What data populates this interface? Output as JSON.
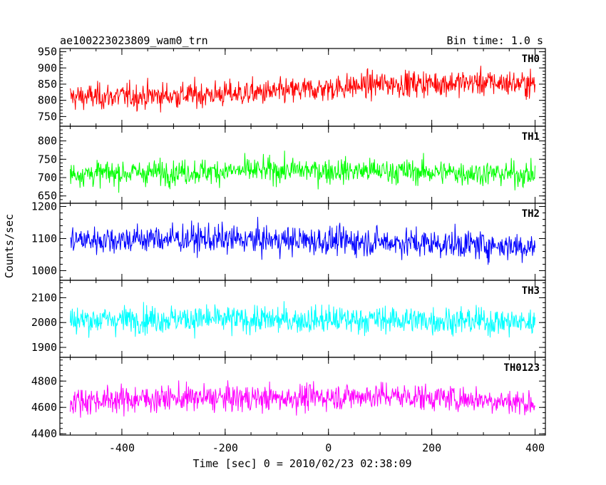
{
  "header": {
    "title": "ae100223023809_wam0_trn",
    "bin_time": "Bin time: 1.0 s"
  },
  "chart_data": {
    "type": "line",
    "xlabel": "Time [sec] 0 = 2010/02/23 02:38:09",
    "ylabel": "Counts/sec",
    "xlim": [
      -520,
      420
    ],
    "xticks": [
      -400,
      -200,
      0,
      200,
      400
    ],
    "x_range": [
      -500,
      400
    ],
    "bin_time_s": 1.0,
    "panels": [
      {
        "name": "TH0",
        "color": "#ff0000",
        "ylim": [
          720,
          960
        ],
        "yticks": [
          750,
          800,
          850,
          900,
          950
        ],
        "trend": [
          [
            -500,
            810
          ],
          [
            -300,
            815
          ],
          [
            -100,
            825
          ],
          [
            100,
            850
          ],
          [
            300,
            855
          ],
          [
            400,
            850
          ]
        ],
        "noise_amplitude": 38
      },
      {
        "name": "TH1",
        "color": "#00ff00",
        "ylim": [
          630,
          840
        ],
        "yticks": [
          650,
          700,
          750,
          800
        ],
        "trend": [
          [
            -500,
            710
          ],
          [
            -300,
            715
          ],
          [
            -100,
            720
          ],
          [
            100,
            718
          ],
          [
            300,
            712
          ],
          [
            400,
            708
          ]
        ],
        "noise_amplitude": 32
      },
      {
        "name": "TH2",
        "color": "#0000ff",
        "ylim": [
          970,
          1210
        ],
        "yticks": [
          1000,
          1100,
          1200
        ],
        "trend": [
          [
            -500,
            1095
          ],
          [
            -300,
            1100
          ],
          [
            -100,
            1095
          ],
          [
            100,
            1090
          ],
          [
            300,
            1080
          ],
          [
            400,
            1075
          ]
        ],
        "noise_amplitude": 42
      },
      {
        "name": "TH3",
        "color": "#00ffff",
        "ylim": [
          1860,
          2170
        ],
        "yticks": [
          1900,
          2000,
          2100
        ],
        "trend": [
          [
            -500,
            2010
          ],
          [
            -300,
            2015
          ],
          [
            -100,
            2010
          ],
          [
            100,
            2012
          ],
          [
            300,
            2005
          ],
          [
            400,
            2000
          ]
        ],
        "noise_amplitude": 52
      },
      {
        "name": "TH0123",
        "color": "#ff00ff",
        "ylim": [
          4390,
          4980
        ],
        "yticks": [
          4400,
          4600,
          4800
        ],
        "trend": [
          [
            -500,
            4650
          ],
          [
            -300,
            4670
          ],
          [
            -100,
            4670
          ],
          [
            100,
            4690
          ],
          [
            300,
            4660
          ],
          [
            400,
            4630
          ]
        ],
        "noise_amplitude": 95
      }
    ]
  }
}
